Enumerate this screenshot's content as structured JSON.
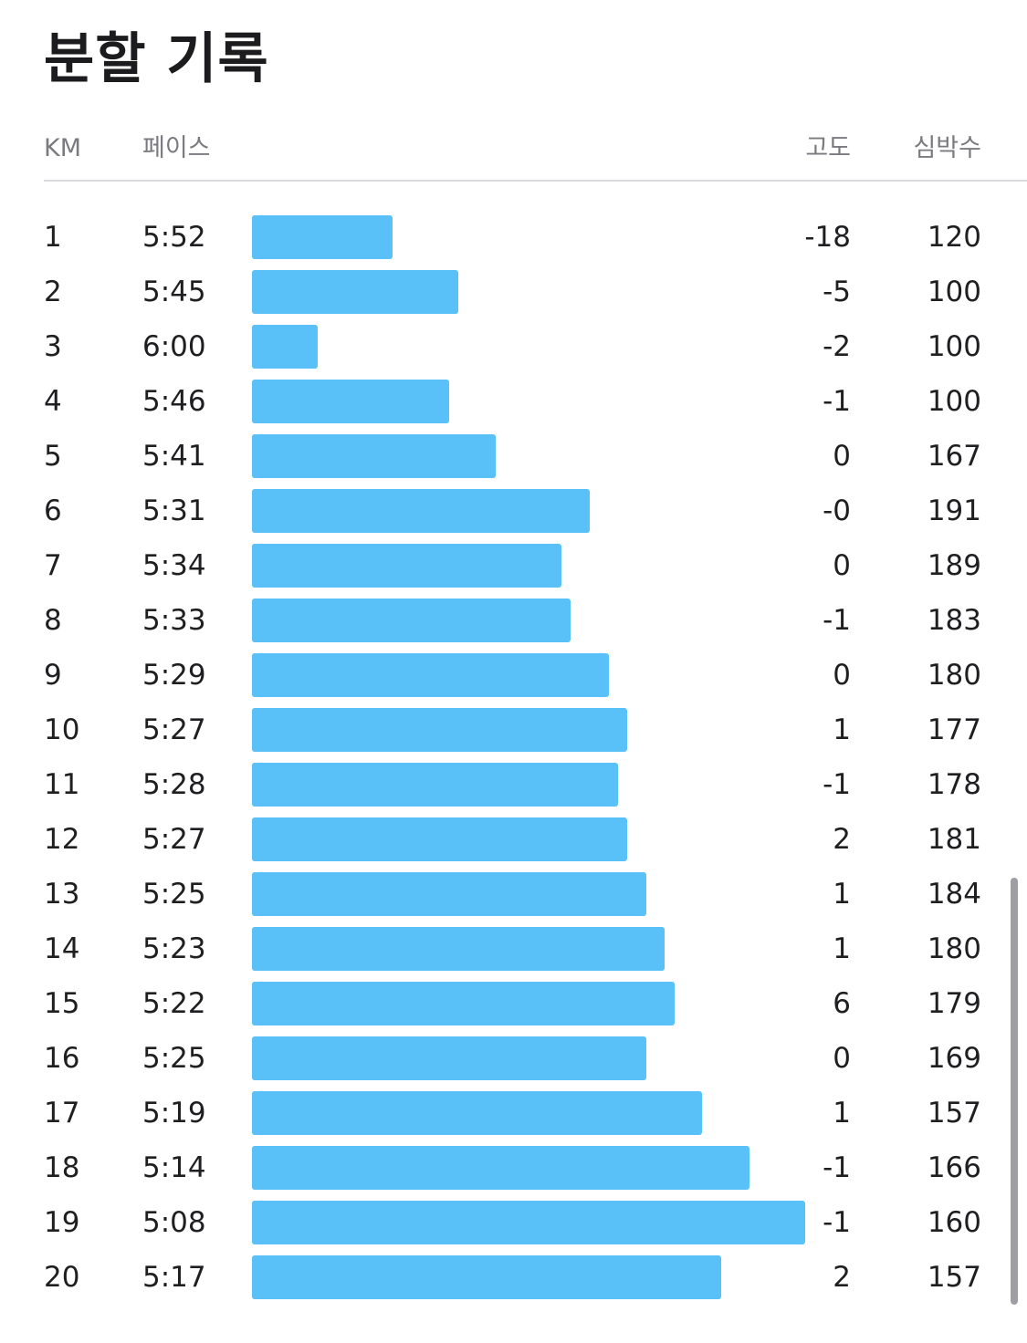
{
  "title": "분할 기록",
  "headers": {
    "km": "KM",
    "pace": "페이스",
    "elevation": "고도",
    "heart_rate": "심박수"
  },
  "colors": {
    "bar": "#5ac0f8",
    "scrollbar": "#9e9ea3"
  },
  "splits": [
    {
      "km": "1",
      "pace": "5:52",
      "pace_seconds": 352,
      "elevation": "-18",
      "heart_rate": "120"
    },
    {
      "km": "2",
      "pace": "5:45",
      "pace_seconds": 345,
      "elevation": "-5",
      "heart_rate": "100"
    },
    {
      "km": "3",
      "pace": "6:00",
      "pace_seconds": 360,
      "elevation": "-2",
      "heart_rate": "100"
    },
    {
      "km": "4",
      "pace": "5:46",
      "pace_seconds": 346,
      "elevation": "-1",
      "heart_rate": "100"
    },
    {
      "km": "5",
      "pace": "5:41",
      "pace_seconds": 341,
      "elevation": "0",
      "heart_rate": "167"
    },
    {
      "km": "6",
      "pace": "5:31",
      "pace_seconds": 331,
      "elevation": "-0",
      "heart_rate": "191"
    },
    {
      "km": "7",
      "pace": "5:34",
      "pace_seconds": 334,
      "elevation": "0",
      "heart_rate": "189"
    },
    {
      "km": "8",
      "pace": "5:33",
      "pace_seconds": 333,
      "elevation": "-1",
      "heart_rate": "183"
    },
    {
      "km": "9",
      "pace": "5:29",
      "pace_seconds": 329,
      "elevation": "0",
      "heart_rate": "180"
    },
    {
      "km": "10",
      "pace": "5:27",
      "pace_seconds": 327,
      "elevation": "1",
      "heart_rate": "177"
    },
    {
      "km": "11",
      "pace": "5:28",
      "pace_seconds": 328,
      "elevation": "-1",
      "heart_rate": "178"
    },
    {
      "km": "12",
      "pace": "5:27",
      "pace_seconds": 327,
      "elevation": "2",
      "heart_rate": "181"
    },
    {
      "km": "13",
      "pace": "5:25",
      "pace_seconds": 325,
      "elevation": "1",
      "heart_rate": "184"
    },
    {
      "km": "14",
      "pace": "5:23",
      "pace_seconds": 323,
      "elevation": "1",
      "heart_rate": "180"
    },
    {
      "km": "15",
      "pace": "5:22",
      "pace_seconds": 322,
      "elevation": "6",
      "heart_rate": "179"
    },
    {
      "km": "16",
      "pace": "5:25",
      "pace_seconds": 325,
      "elevation": "0",
      "heart_rate": "169"
    },
    {
      "km": "17",
      "pace": "5:19",
      "pace_seconds": 319,
      "elevation": "1",
      "heart_rate": "157"
    },
    {
      "km": "18",
      "pace": "5:14",
      "pace_seconds": 314,
      "elevation": "-1",
      "heart_rate": "166"
    },
    {
      "km": "19",
      "pace": "5:08",
      "pace_seconds": 308,
      "elevation": "-1",
      "heart_rate": "160"
    },
    {
      "km": "20",
      "pace": "5:17",
      "pace_seconds": 317,
      "elevation": "2",
      "heart_rate": "157"
    }
  ]
}
